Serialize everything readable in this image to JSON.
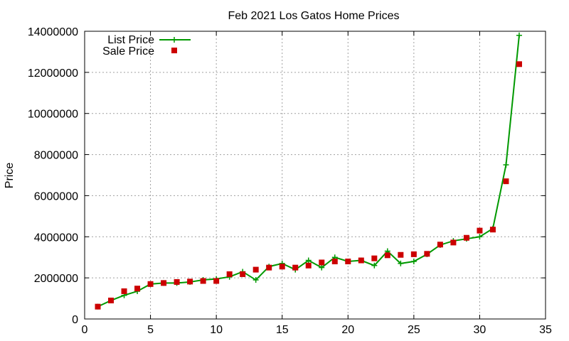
{
  "chart_data": {
    "type": "line",
    "title": "Feb 2021 Los Gatos Home Prices",
    "xlabel": "",
    "ylabel": "Price",
    "xlim": [
      0,
      35
    ],
    "ylim": [
      0,
      14000000
    ],
    "xticks": [
      0,
      5,
      10,
      15,
      20,
      25,
      30,
      35
    ],
    "yticks": [
      0,
      2000000,
      4000000,
      6000000,
      8000000,
      10000000,
      12000000,
      14000000
    ],
    "xtick_labels": [
      "0",
      "5",
      "10",
      "15",
      "20",
      "25",
      "30",
      "35"
    ],
    "ytick_labels": [
      "0",
      "2000000",
      "4000000",
      "6000000",
      "8000000",
      "10000000",
      "12000000",
      "14000000"
    ],
    "grid": true,
    "legend_position": "top-left",
    "series": [
      {
        "name": "List Price",
        "style": "line-plus",
        "color": "#009900",
        "x": [
          1,
          2,
          3,
          4,
          5,
          6,
          7,
          8,
          9,
          10,
          11,
          12,
          13,
          14,
          15,
          16,
          17,
          18,
          19,
          20,
          21,
          22,
          23,
          24,
          25,
          26,
          27,
          28,
          29,
          30,
          31,
          32,
          33
        ],
        "y": [
          600000,
          900000,
          1150000,
          1350000,
          1700000,
          1750000,
          1750000,
          1800000,
          1900000,
          1950000,
          2050000,
          2300000,
          1900000,
          2550000,
          2700000,
          2400000,
          2850000,
          2500000,
          3000000,
          2800000,
          2850000,
          2600000,
          3300000,
          2700000,
          2800000,
          3150000,
          3600000,
          3800000,
          3900000,
          4000000,
          4400000,
          7500000,
          13800000
        ]
      },
      {
        "name": "Sale Price",
        "style": "square",
        "color": "#cc0000",
        "x": [
          1,
          2,
          3,
          4,
          5,
          6,
          7,
          8,
          9,
          10,
          11,
          12,
          13,
          14,
          15,
          16,
          17,
          18,
          19,
          20,
          21,
          22,
          23,
          24,
          25,
          26,
          27,
          28,
          29,
          30,
          31,
          32,
          33
        ],
        "y": [
          600000,
          900000,
          1350000,
          1480000,
          1700000,
          1750000,
          1800000,
          1820000,
          1850000,
          1850000,
          2180000,
          2180000,
          2400000,
          2500000,
          2550000,
          2500000,
          2600000,
          2750000,
          2800000,
          2800000,
          2850000,
          2950000,
          3100000,
          3120000,
          3150000,
          3170000,
          3620000,
          3720000,
          3950000,
          4300000,
          4350000,
          6700000,
          12400000
        ]
      }
    ]
  }
}
